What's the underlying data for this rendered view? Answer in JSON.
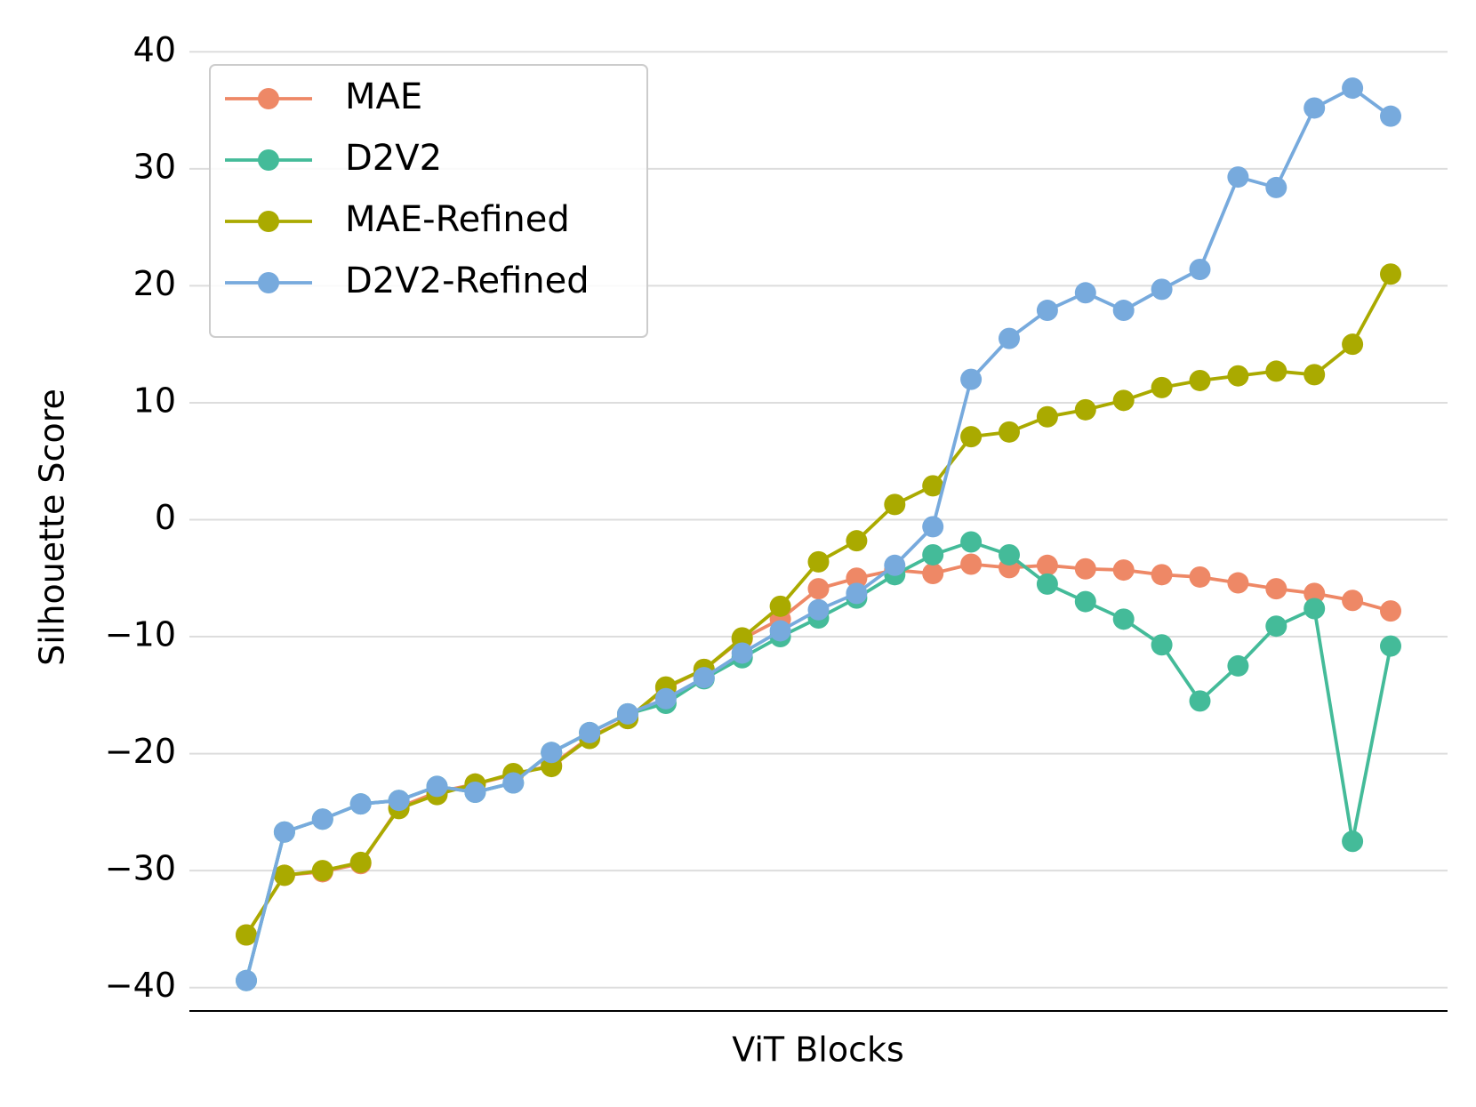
{
  "chart_data": {
    "type": "line",
    "xlabel": "ViT Blocks",
    "ylabel": "Silhouette Score",
    "categories": [
      null,
      null,
      null,
      null,
      null,
      null,
      null,
      null,
      null,
      null,
      null,
      null,
      null,
      null,
      null,
      null,
      null,
      null,
      null,
      null,
      null,
      null,
      null,
      null,
      null,
      null,
      null,
      null,
      null,
      null,
      null
    ],
    "series": [
      {
        "name": "MAE",
        "color": "#ee8866",
        "values": [
          -35.5,
          -30.4,
          -30.1,
          -29.4,
          -24.6,
          -23.3,
          -22.6,
          -21.8,
          -21.0,
          -18.6,
          -17.0,
          -14.4,
          -12.8,
          -10.2,
          -8.5,
          -5.9,
          -5.0,
          -4.3,
          -4.6,
          -3.8,
          -4.1,
          -3.9,
          -4.2,
          -4.3,
          -4.7,
          -4.9,
          -5.4,
          -5.9,
          -6.3,
          -6.9,
          -7.8
        ]
      },
      {
        "name": "D2V2",
        "color": "#44bb99",
        "values": [
          -39.4,
          -26.7,
          -25.6,
          -24.3,
          -24.0,
          -22.8,
          -23.3,
          -22.5,
          -19.9,
          -18.2,
          -16.6,
          -15.7,
          -13.6,
          -11.8,
          -10.0,
          -8.4,
          -6.7,
          -4.7,
          -3.0,
          -1.9,
          -3.0,
          -5.5,
          -7.0,
          -8.5,
          -10.7,
          -15.5,
          -12.5,
          -9.1,
          -7.6,
          -27.5,
          -10.8
        ]
      },
      {
        "name": "MAE-Refined",
        "color": "#aaaa00",
        "values": [
          -35.5,
          -30.4,
          -30.0,
          -29.3,
          -24.7,
          -23.5,
          -22.6,
          -21.7,
          -21.1,
          -18.7,
          -17.0,
          -14.3,
          -12.8,
          -10.1,
          -7.4,
          -3.6,
          -1.8,
          1.3,
          2.9,
          7.1,
          7.5,
          8.8,
          9.4,
          10.2,
          11.3,
          11.9,
          12.3,
          12.7,
          12.4,
          15.0,
          21.0
        ]
      },
      {
        "name": "D2V2-Refined",
        "color": "#77aadd",
        "values": [
          -39.4,
          -26.7,
          -25.6,
          -24.3,
          -24.0,
          -22.8,
          -23.3,
          -22.5,
          -19.9,
          -18.2,
          -16.6,
          -15.3,
          -13.5,
          -11.4,
          -9.5,
          -7.7,
          -6.3,
          -3.9,
          -0.6,
          12.0,
          15.5,
          17.9,
          19.4,
          17.9,
          19.7,
          21.4,
          29.3,
          28.4,
          35.2,
          36.9,
          34.5
        ]
      }
    ],
    "ylim": [
      -42,
      42
    ],
    "yticks": [
      {
        "value": -40,
        "label": "−40"
      },
      {
        "value": -30,
        "label": "−30"
      },
      {
        "value": -20,
        "label": "−20"
      },
      {
        "value": -10,
        "label": "−10"
      },
      0,
      10,
      20,
      30,
      40
    ],
    "grid": true,
    "legend": "upper left"
  }
}
